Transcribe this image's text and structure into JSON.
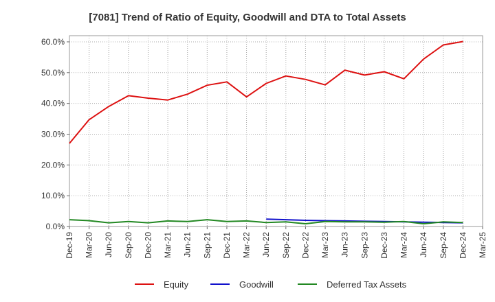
{
  "chart_data": {
    "type": "line",
    "title": "[7081]  Trend of Ratio of Equity, Goodwill and DTA to Total Assets",
    "xlabel": "",
    "ylabel": "",
    "x_ticks": [
      "Dec-19",
      "Mar-20",
      "Jun-20",
      "Sep-20",
      "Dec-20",
      "Mar-21",
      "Jun-21",
      "Sep-21",
      "Dec-21",
      "Mar-22",
      "Jun-22",
      "Sep-22",
      "Dec-22",
      "Mar-23",
      "Jun-23",
      "Sep-23",
      "Dec-23",
      "Mar-24",
      "Jun-24",
      "Sep-24",
      "Dec-24",
      "Mar-25"
    ],
    "y_ticks": [
      "0.0%",
      "10.0%",
      "20.0%",
      "30.0%",
      "40.0%",
      "50.0%",
      "60.0%"
    ],
    "ylim": [
      0,
      62
    ],
    "grid": true,
    "legend_position": "bottom",
    "series": [
      {
        "name": "Equity",
        "color": "#dd1111",
        "x": [
          "Dec-19",
          "Mar-20",
          "Jun-20",
          "Sep-20",
          "Dec-20",
          "Mar-21",
          "Jun-21",
          "Sep-21",
          "Dec-21",
          "Mar-22",
          "Jun-22",
          "Sep-22",
          "Dec-22",
          "Mar-23",
          "Jun-23",
          "Sep-23",
          "Dec-23",
          "Mar-24",
          "Jun-24",
          "Sep-24",
          "Dec-24"
        ],
        "values": [
          27.0,
          34.7,
          39.0,
          42.5,
          41.7,
          41.1,
          43.0,
          45.9,
          47.0,
          42.1,
          46.5,
          48.9,
          47.8,
          46.0,
          50.8,
          49.2,
          50.3,
          48.0,
          54.4,
          59.0,
          60.1
        ]
      },
      {
        "name": "Goodwill",
        "color": "#1111cc",
        "x": [
          "Jun-22",
          "Sep-22",
          "Dec-22",
          "Mar-23",
          "Jun-23",
          "Sep-23",
          "Dec-23",
          "Mar-24",
          "Jun-24",
          "Sep-24",
          "Dec-24"
        ],
        "values": [
          2.4,
          2.2,
          2.0,
          1.9,
          1.8,
          1.7,
          1.6,
          1.5,
          1.4,
          1.3,
          1.2
        ]
      },
      {
        "name": "Deferred Tax Assets",
        "color": "#228822",
        "x": [
          "Dec-19",
          "Mar-20",
          "Jun-20",
          "Sep-20",
          "Dec-20",
          "Mar-21",
          "Jun-21",
          "Sep-21",
          "Dec-21",
          "Mar-22",
          "Jun-22",
          "Sep-22",
          "Dec-22",
          "Mar-23",
          "Jun-23",
          "Sep-23",
          "Dec-23",
          "Mar-24",
          "Jun-24",
          "Sep-24",
          "Dec-24"
        ],
        "values": [
          2.2,
          1.9,
          1.2,
          1.6,
          1.2,
          1.8,
          1.6,
          2.2,
          1.6,
          1.8,
          1.3,
          1.5,
          0.9,
          1.6,
          1.5,
          1.5,
          1.4,
          1.6,
          0.9,
          1.5,
          1.3
        ]
      }
    ]
  }
}
